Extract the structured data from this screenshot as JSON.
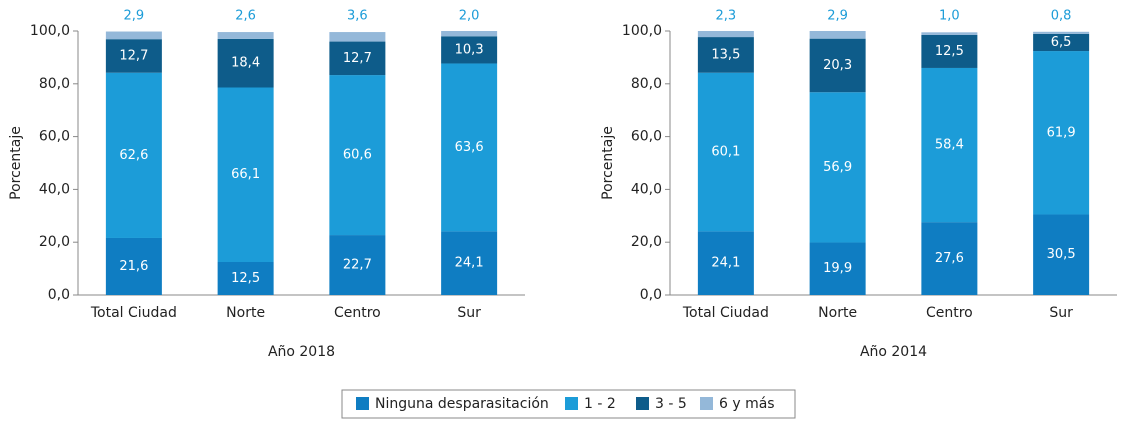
{
  "chart_data": [
    {
      "type": "bar",
      "stacked": true,
      "xlabel": "Año 2018",
      "ylabel": "Porcentaje",
      "categories": [
        "Total Ciudad",
        "Norte",
        "Centro",
        "Sur"
      ],
      "series": [
        {
          "name": "Ninguna desparasitación",
          "color": "#0f7dc2",
          "values": [
            21.6,
            12.5,
            22.7,
            24.1
          ],
          "value_labels": [
            "21,6",
            "12,5",
            "22,7",
            "24,1"
          ]
        },
        {
          "name": "1 - 2",
          "color": "#1c9cd8",
          "values": [
            62.6,
            66.1,
            60.6,
            63.6
          ],
          "value_labels": [
            "62,6",
            "66,1",
            "60,6",
            "63,6"
          ]
        },
        {
          "name": "3 - 5",
          "color": "#0e5c8a",
          "values": [
            12.7,
            18.4,
            12.7,
            10.3
          ],
          "value_labels": [
            "12,7",
            "18,4",
            "12,7",
            "10,3"
          ]
        },
        {
          "name": "6 y más",
          "color": "#94b8d9",
          "values": [
            2.9,
            2.6,
            3.6,
            2.0
          ],
          "value_labels": [
            "2,9",
            "2,6",
            "3,6",
            "2,0"
          ]
        }
      ],
      "ylim": [
        0,
        100
      ],
      "yticks": [
        {
          "value": 0,
          "label": "0,0"
        },
        {
          "value": 20,
          "label": "20,0"
        },
        {
          "value": 40,
          "label": "40,0"
        },
        {
          "value": 60,
          "label": "60,0"
        },
        {
          "value": 80,
          "label": "80,0"
        },
        {
          "value": 100,
          "label": "100,0"
        }
      ]
    },
    {
      "type": "bar",
      "stacked": true,
      "xlabel": "Año 2014",
      "ylabel": "Porcentaje",
      "categories": [
        "Total Ciudad",
        "Norte",
        "Centro",
        "Sur"
      ],
      "series": [
        {
          "name": "Ninguna desparasitación",
          "color": "#0f7dc2",
          "values": [
            24.1,
            19.9,
            27.6,
            30.5
          ],
          "value_labels": [
            "24,1",
            "19,9",
            "27,6",
            "30,5"
          ]
        },
        {
          "name": "1 - 2",
          "color": "#1c9cd8",
          "values": [
            60.1,
            56.9,
            58.4,
            61.9
          ],
          "value_labels": [
            "60,1",
            "56,9",
            "58,4",
            "61,9"
          ]
        },
        {
          "name": "3 - 5",
          "color": "#0e5c8a",
          "values": [
            13.5,
            20.3,
            12.5,
            6.5
          ],
          "value_labels": [
            "13,5",
            "20,3",
            "12,5",
            "6,5"
          ]
        },
        {
          "name": "6 y más",
          "color": "#94b8d9",
          "values": [
            2.3,
            2.9,
            1.0,
            0.8
          ],
          "value_labels": [
            "2,3",
            "2,9",
            "1,0",
            "0,8"
          ]
        }
      ],
      "ylim": [
        0,
        100
      ],
      "yticks": [
        {
          "value": 0,
          "label": "0,0"
        },
        {
          "value": 20,
          "label": "20,0"
        },
        {
          "value": 40,
          "label": "40,0"
        },
        {
          "value": 60,
          "label": "60,0"
        },
        {
          "value": 80,
          "label": "80,0"
        },
        {
          "value": 100,
          "label": "100,0"
        }
      ]
    }
  ]
}
